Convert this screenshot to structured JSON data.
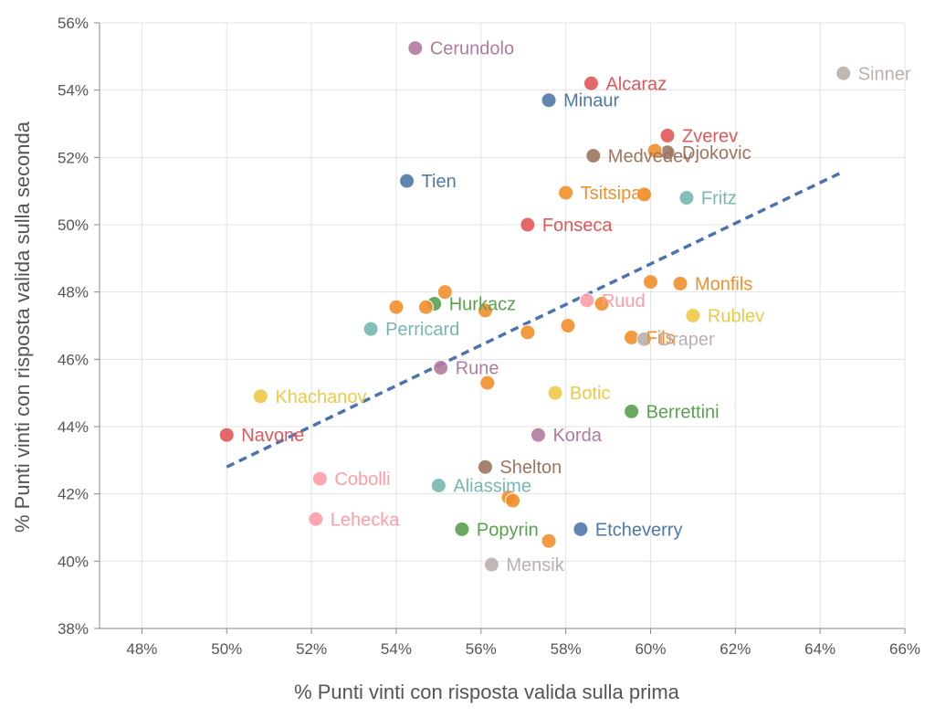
{
  "chart_data": {
    "type": "scatter",
    "title": "",
    "xlabel": "% Punti vinti con risposta valida sulla prima",
    "ylabel": "% Punti vinti con risposta valida sulla seconda",
    "xlim": [
      0.47,
      0.66
    ],
    "ylim": [
      0.38,
      0.56
    ],
    "xticks": [
      "48%",
      "50%",
      "52%",
      "54%",
      "56%",
      "58%",
      "60%",
      "62%",
      "64%",
      "66%"
    ],
    "xtick_values": [
      0.48,
      0.5,
      0.52,
      0.54,
      0.56,
      0.58,
      0.6,
      0.62,
      0.64,
      0.66
    ],
    "yticks": [
      "38%",
      "40%",
      "42%",
      "44%",
      "46%",
      "48%",
      "50%",
      "52%",
      "54%",
      "56%"
    ],
    "ytick_values": [
      0.38,
      0.4,
      0.42,
      0.44,
      0.46,
      0.48,
      0.5,
      0.52,
      0.54,
      0.56
    ],
    "grid": true,
    "trendline": {
      "x": [
        0.5,
        0.645
      ],
      "y": [
        0.428,
        0.5155
      ],
      "color": "#4c72b0",
      "style": "dashed"
    },
    "points": [
      {
        "label": "Cerundolo",
        "x": 0.5445,
        "y": 0.5525,
        "color": "#b07aa1"
      },
      {
        "label": "Alcaraz",
        "x": 0.586,
        "y": 0.542,
        "color": "#e15759"
      },
      {
        "label": "Sinner",
        "x": 0.6455,
        "y": 0.545,
        "color": "#bab0ac"
      },
      {
        "label": "Minaur",
        "x": 0.576,
        "y": 0.537,
        "color": "#4e79a7"
      },
      {
        "label": "Zverev",
        "x": 0.604,
        "y": 0.5265,
        "color": "#e15759"
      },
      {
        "label": "Djokovic",
        "x": 0.604,
        "y": 0.5215,
        "color": "#9c755f"
      },
      {
        "label": "Medvedev",
        "x": 0.5865,
        "y": 0.5205,
        "color": "#9c755f"
      },
      {
        "label": "Tien",
        "x": 0.5425,
        "y": 0.513,
        "color": "#4e79a7"
      },
      {
        "label": "Tsitsipas",
        "x": 0.58,
        "y": 0.5095,
        "color": "#f28e2b"
      },
      {
        "label": "Fritz",
        "x": 0.6085,
        "y": 0.508,
        "color": "#76b7b2"
      },
      {
        "label": "Fonseca",
        "x": 0.571,
        "y": 0.5,
        "color": "#e15759"
      },
      {
        "label": "Monfils",
        "x": 0.607,
        "y": 0.4825,
        "color": "#f28e2b"
      },
      {
        "label": "Hurkacz",
        "x": 0.549,
        "y": 0.4765,
        "color": "#59a14f"
      },
      {
        "label": "Ruud",
        "x": 0.585,
        "y": 0.4775,
        "color": "#ff9da7"
      },
      {
        "label": "Rublev",
        "x": 0.61,
        "y": 0.473,
        "color": "#edc948"
      },
      {
        "label": "Perricard",
        "x": 0.534,
        "y": 0.469,
        "color": "#76b7b2"
      },
      {
        "label": "Fils",
        "x": 0.5955,
        "y": 0.4665,
        "color": "#f28e2b"
      },
      {
        "label": "Draper",
        "x": 0.5985,
        "y": 0.466,
        "color": "#bab0ac"
      },
      {
        "label": "Rune",
        "x": 0.5505,
        "y": 0.4575,
        "color": "#b07aa1"
      },
      {
        "label": "Botic",
        "x": 0.5775,
        "y": 0.45,
        "color": "#edc948"
      },
      {
        "label": "Khachanov",
        "x": 0.508,
        "y": 0.449,
        "color": "#edc948"
      },
      {
        "label": "Berrettini",
        "x": 0.5955,
        "y": 0.4445,
        "color": "#59a14f"
      },
      {
        "label": "Navone",
        "x": 0.5,
        "y": 0.4375,
        "color": "#e15759"
      },
      {
        "label": "Korda",
        "x": 0.5735,
        "y": 0.4375,
        "color": "#b07aa1"
      },
      {
        "label": "Shelton",
        "x": 0.561,
        "y": 0.428,
        "color": "#9c755f"
      },
      {
        "label": "Cobolli",
        "x": 0.522,
        "y": 0.4245,
        "color": "#ff9da7"
      },
      {
        "label": "Aliassime",
        "x": 0.55,
        "y": 0.4225,
        "color": "#76b7b2"
      },
      {
        "label": "Lehecka",
        "x": 0.521,
        "y": 0.4125,
        "color": "#ff9da7"
      },
      {
        "label": "Popyrin",
        "x": 0.5555,
        "y": 0.4095,
        "color": "#59a14f"
      },
      {
        "label": "Etcheverry",
        "x": 0.5835,
        "y": 0.4095,
        "color": "#4e79a7"
      },
      {
        "label": "Mensik",
        "x": 0.5625,
        "y": 0.399,
        "color": "#bab0ac"
      },
      {
        "label": "",
        "x": 0.5515,
        "y": 0.48,
        "color": "#f28e2b"
      },
      {
        "label": "",
        "x": 0.54,
        "y": 0.4755,
        "color": "#f28e2b"
      },
      {
        "label": "",
        "x": 0.547,
        "y": 0.4755,
        "color": "#f28e2b"
      },
      {
        "label": "",
        "x": 0.561,
        "y": 0.4745,
        "color": "#f28e2b"
      },
      {
        "label": "",
        "x": 0.571,
        "y": 0.468,
        "color": "#f28e2b"
      },
      {
        "label": "",
        "x": 0.5805,
        "y": 0.47,
        "color": "#f28e2b"
      },
      {
        "label": "",
        "x": 0.5885,
        "y": 0.4765,
        "color": "#f28e2b"
      },
      {
        "label": "",
        "x": 0.6,
        "y": 0.483,
        "color": "#f28e2b"
      },
      {
        "label": "",
        "x": 0.5615,
        "y": 0.453,
        "color": "#f28e2b"
      },
      {
        "label": "",
        "x": 0.5985,
        "y": 0.509,
        "color": "#f28e2b"
      },
      {
        "label": "",
        "x": 0.601,
        "y": 0.522,
        "color": "#f28e2b"
      },
      {
        "label": "",
        "x": 0.5665,
        "y": 0.419,
        "color": "#f28e2b"
      },
      {
        "label": "",
        "x": 0.5675,
        "y": 0.418,
        "color": "#f28e2b"
      },
      {
        "label": "",
        "x": 0.576,
        "y": 0.406,
        "color": "#f28e2b"
      }
    ]
  }
}
